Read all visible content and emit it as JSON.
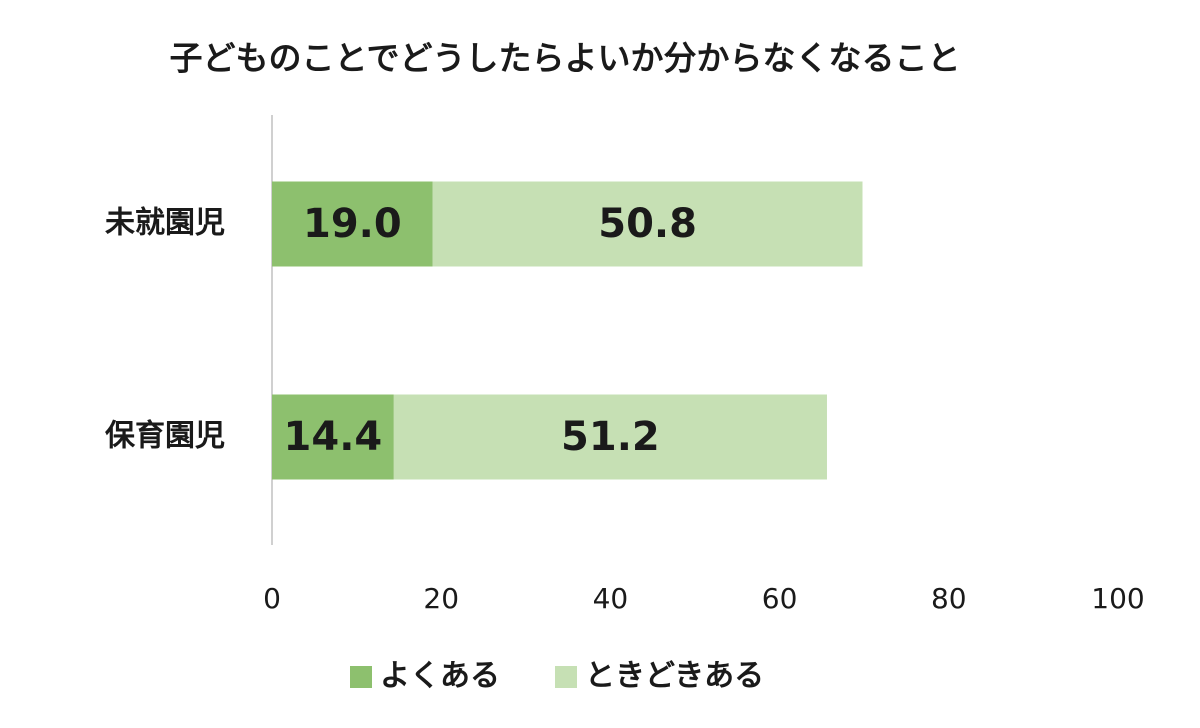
{
  "chart_data": {
    "type": "stacked_barh",
    "title": "子どものことでどうしたらよいか分からなくなること",
    "categories": [
      "未就園児",
      "保育園児"
    ],
    "series": [
      {
        "name": "よくある",
        "color": "#8dc06e",
        "values": [
          19.0,
          14.4
        ],
        "value_labels": [
          "19.0",
          "14.4"
        ]
      },
      {
        "name": "ときどきある",
        "color": "#c6e0b4",
        "values": [
          50.8,
          51.2
        ],
        "value_labels": [
          "50.8",
          "51.2"
        ]
      }
    ],
    "xlim": [
      0,
      100
    ],
    "xticks": [
      0,
      20,
      40,
      60,
      80,
      100
    ],
    "grid": false,
    "legend": "bottom"
  }
}
